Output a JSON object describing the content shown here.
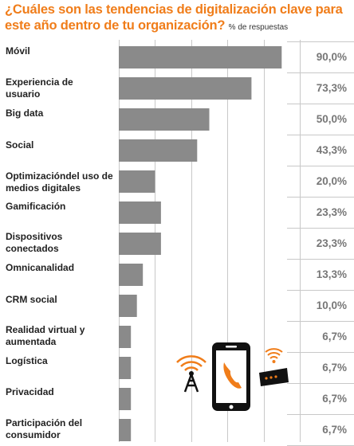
{
  "title": {
    "main": "¿Cuáles son las tendencias de digitalización clave para este año dentro de tu organización?",
    "unit": "% de respuestas"
  },
  "colors": {
    "title": "#f07d1a",
    "bar": "#8a8a8a",
    "values": "#777777",
    "icon_accent": "#f07d1a"
  },
  "icons": [
    "antenna-icon",
    "smartphone-phone-icon",
    "router-wifi-icon"
  ],
  "chart_data": {
    "type": "bar",
    "orientation": "horizontal",
    "categories": [
      "Móvil",
      "Experiencia de usuario",
      "Big data",
      "Social",
      "Optimizacióndel uso de medios digitales",
      "Gamificación",
      "Dispositivos conectados",
      "Omnicanalidad",
      "CRM social",
      "Realidad virtual y aumentada",
      "Logística",
      "Privacidad",
      "Participación del consumidor"
    ],
    "values": [
      90.0,
      73.3,
      50.0,
      43.3,
      20.0,
      23.3,
      23.3,
      13.3,
      10.0,
      6.7,
      6.7,
      6.7,
      6.7
    ],
    "value_labels": [
      "90,0%",
      "73,3%",
      "50,0%",
      "43,3%",
      "20,0%",
      "23,3%",
      "23,3%",
      "13,3%",
      "10,0%",
      "6,7%",
      "6,7%",
      "6,7%",
      "6,7%"
    ],
    "xlim": [
      0,
      100
    ],
    "grid": true,
    "unit": "% de respuestas"
  }
}
